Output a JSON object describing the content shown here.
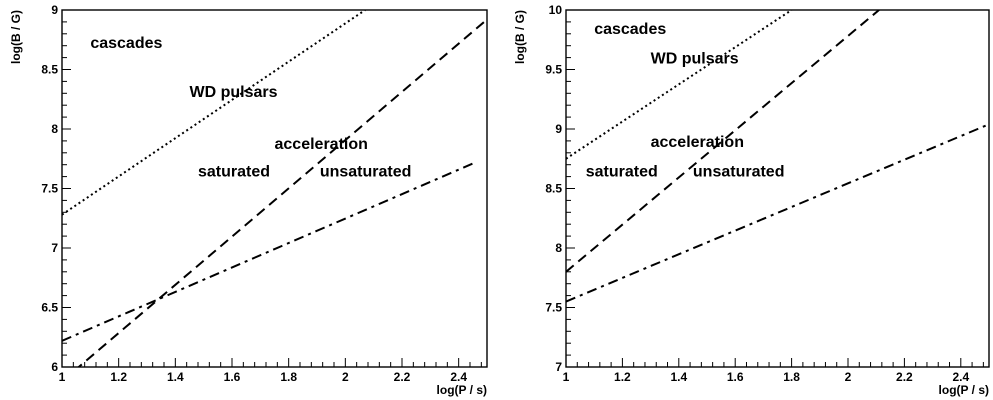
{
  "chart_data": [
    {
      "type": "line",
      "xlabel": "log(P / s)",
      "ylabel": "log(B / G)",
      "xlim": [
        1,
        2.5
      ],
      "ylim": [
        6,
        9
      ],
      "xticks": [
        1,
        1.2,
        1.4,
        1.6,
        1.8,
        2,
        2.2,
        2.4
      ],
      "yticks": [
        6,
        6.5,
        7,
        7.5,
        8,
        8.5,
        9
      ],
      "xtick_labels": [
        "1",
        "1.2",
        "1.4",
        "1.6",
        "1.8",
        "2",
        "2.2",
        "2.4"
      ],
      "ytick_labels": [
        "6",
        "6.5",
        "7",
        "7.5",
        "8",
        "8.5",
        "9"
      ],
      "series": [
        {
          "style": "dotted",
          "x": [
            1,
            2.07
          ],
          "y": [
            7.28,
            9
          ]
        },
        {
          "style": "dashed",
          "x": [
            1,
            2.5
          ],
          "y": [
            5.88,
            8.92
          ]
        },
        {
          "style": "dashdot",
          "x": [
            1,
            2.46
          ],
          "y": [
            6.22,
            7.72
          ]
        }
      ],
      "annotations": [
        {
          "text": "cascades",
          "x": 1.1,
          "y": 8.68
        },
        {
          "text": "WD pulsars",
          "x": 1.45,
          "y": 8.27
        },
        {
          "text": "acceleration",
          "x": 1.75,
          "y": 7.83
        },
        {
          "text": "saturated",
          "x": 1.48,
          "y": 7.6
        },
        {
          "text": "unsaturated",
          "x": 1.91,
          "y": 7.6
        }
      ]
    },
    {
      "type": "line",
      "xlabel": "log(P / s)",
      "ylabel": "log(B / G)",
      "xlim": [
        1,
        2.5
      ],
      "ylim": [
        7,
        10
      ],
      "xticks": [
        1,
        1.2,
        1.4,
        1.6,
        1.8,
        2,
        2.2,
        2.4
      ],
      "yticks": [
        7,
        7.5,
        8,
        8.5,
        9,
        9.5,
        10
      ],
      "xtick_labels": [
        "1",
        "1.2",
        "1.4",
        "1.6",
        "1.8",
        "2",
        "2.2",
        "2.4"
      ],
      "ytick_labels": [
        "7",
        "7.5",
        "8",
        "8.5",
        "9",
        "9.5",
        "10"
      ],
      "series": [
        {
          "style": "dotted",
          "x": [
            1,
            1.8
          ],
          "y": [
            8.75,
            10
          ]
        },
        {
          "style": "dashed",
          "x": [
            1,
            2.11
          ],
          "y": [
            7.8,
            10
          ]
        },
        {
          "style": "dashdot",
          "x": [
            1,
            2.5
          ],
          "y": [
            7.55,
            9.04
          ]
        }
      ],
      "annotations": [
        {
          "text": "cascades",
          "x": 1.1,
          "y": 9.8
        },
        {
          "text": "WD pulsars",
          "x": 1.3,
          "y": 9.55
        },
        {
          "text": "acceleration",
          "x": 1.3,
          "y": 8.85
        },
        {
          "text": "saturated",
          "x": 1.07,
          "y": 8.6
        },
        {
          "text": "unsaturated",
          "x": 1.45,
          "y": 8.6
        }
      ]
    }
  ]
}
